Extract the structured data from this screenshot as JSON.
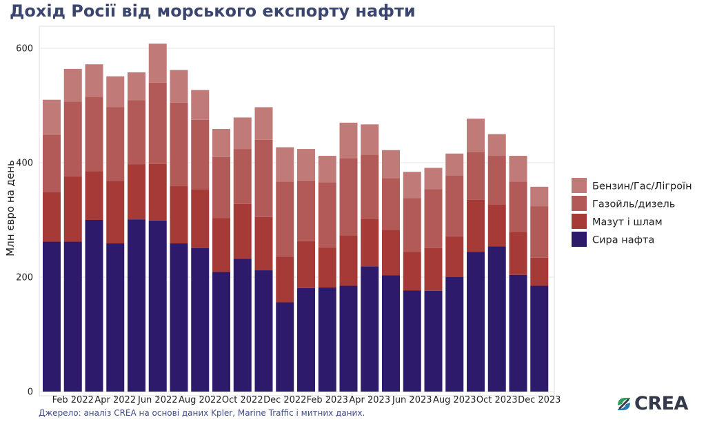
{
  "title": "Дохід Росії від морського експорту нафти",
  "source": "Джерело: аналіз CREA на основі даних Kpler, Marine Traffic і митних даних.",
  "logo_text": "CREA",
  "chart_data": {
    "type": "bar",
    "stacked": true,
    "ylabel": "Млн євро на день",
    "ylim": [
      0,
      645
    ],
    "yticks": [
      0,
      200,
      400,
      600
    ],
    "grid": true,
    "legend_position": "right",
    "categories": [
      "Jan 2022",
      "Feb 2022",
      "Mar 2022",
      "Apr 2022",
      "May 2022",
      "Jun 2022",
      "Jul 2022",
      "Aug 2022",
      "Sep 2022",
      "Oct 2022",
      "Nov 2022",
      "Dec 2022",
      "Jan 2023",
      "Feb 2023",
      "Mar 2023",
      "Apr 2023",
      "May 2023",
      "Jun 2023",
      "Jul 2023",
      "Aug 2023",
      "Sep 2023",
      "Oct 2023",
      "Nov 2023",
      "Dec 2023"
    ],
    "xtick_labels": [
      "Feb 2022",
      "Apr 2022",
      "Jun 2022",
      "Aug 2022",
      "Oct 2022",
      "Dec 2022",
      "Feb 2023",
      "Apr 2023",
      "Jun 2023",
      "Aug 2023",
      "Oct 2023",
      "Dec 2023"
    ],
    "series": [
      {
        "name": "Сира нафта",
        "color": "#2e1a6b",
        "values": [
          262,
          262,
          300,
          259,
          301,
          299,
          259,
          251,
          209,
          232,
          212,
          156,
          181,
          182,
          185,
          219,
          203,
          177,
          176,
          200,
          244,
          254,
          204,
          185
        ]
      },
      {
        "name": "Мазут і шлам",
        "color": "#a63a37",
        "values": [
          87,
          114,
          85,
          109,
          96,
          99,
          100,
          102,
          94,
          96,
          93,
          80,
          82,
          70,
          88,
          83,
          80,
          67,
          75,
          71,
          91,
          73,
          75,
          49
        ]
      },
      {
        "name": "Газойль/дизель",
        "color": "#b25a57",
        "values": [
          100,
          131,
          130,
          129,
          112,
          142,
          146,
          122,
          107,
          96,
          135,
          131,
          106,
          114,
          135,
          112,
          90,
          94,
          103,
          107,
          84,
          85,
          88,
          90
        ]
      },
      {
        "name": "Бензин/Гас/Лігроїн",
        "color": "#c07b79",
        "values": [
          61,
          57,
          57,
          54,
          49,
          68,
          57,
          52,
          49,
          55,
          57,
          60,
          55,
          46,
          62,
          53,
          49,
          46,
          37,
          38,
          58,
          38,
          45,
          34
        ]
      }
    ]
  }
}
